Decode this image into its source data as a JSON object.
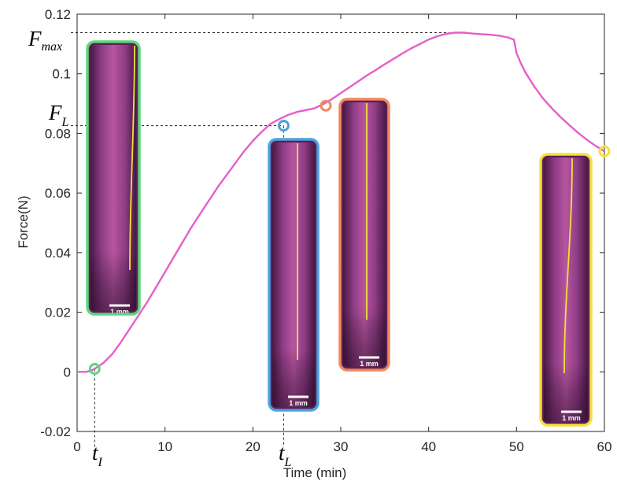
{
  "chart_data": {
    "type": "line",
    "title": "",
    "xlabel": "Time (min)",
    "ylabel": "Force(N)",
    "xlim": [
      0,
      60
    ],
    "ylim": [
      -0.02,
      0.12
    ],
    "xticks": [
      0,
      10,
      20,
      30,
      40,
      50,
      60
    ],
    "yticks": [
      -0.02,
      0,
      0.02,
      0.04,
      0.06,
      0.08,
      0.1,
      0.12
    ],
    "ytick_labels": [
      "-0.02",
      "0",
      "0.02",
      "0.04",
      "0.06",
      "0.08",
      "0.1",
      "0.12"
    ],
    "xtick_labels": [
      "0",
      "10",
      "20",
      "30",
      "40",
      "50",
      "60"
    ],
    "grid": false,
    "series": [
      {
        "color": "#e55fc8",
        "x": [
          0,
          1,
          1.5,
          2,
          3,
          4,
          5,
          6,
          7,
          8,
          9,
          10,
          11,
          12,
          13,
          14,
          15,
          16,
          17,
          18,
          19,
          20,
          21,
          22,
          23,
          24,
          25,
          26,
          27,
          28,
          29,
          30,
          31,
          32,
          33,
          34,
          35,
          36,
          37,
          38,
          39,
          40,
          41,
          42,
          43,
          44,
          45,
          46,
          47,
          48,
          49,
          49.7,
          50,
          50.5,
          51,
          52,
          53,
          54,
          55,
          56,
          57,
          58,
          59,
          60
        ],
        "y": [
          0,
          0,
          0.0003,
          0.001,
          0.003,
          0.006,
          0.01,
          0.0145,
          0.019,
          0.0235,
          0.0285,
          0.0335,
          0.0385,
          0.0435,
          0.0485,
          0.053,
          0.0575,
          0.062,
          0.066,
          0.07,
          0.074,
          0.0775,
          0.0805,
          0.0832,
          0.0848,
          0.0862,
          0.0872,
          0.0878,
          0.0884,
          0.0898,
          0.0915,
          0.0935,
          0.0955,
          0.0975,
          0.0995,
          0.1013,
          0.1032,
          0.105,
          0.1068,
          0.1085,
          0.11,
          0.1115,
          0.1126,
          0.1134,
          0.1138,
          0.1138,
          0.1135,
          0.1133,
          0.1131,
          0.1128,
          0.1122,
          0.1115,
          0.107,
          0.1035,
          0.1005,
          0.0958,
          0.0918,
          0.0885,
          0.0855,
          0.0828,
          0.0802,
          0.0779,
          0.0758,
          0.074
        ]
      }
    ],
    "markers": [
      {
        "label": "t_I",
        "x": 2,
        "y": 0.001,
        "color": "#5ed67d"
      },
      {
        "label": "t_L",
        "x": 23.5,
        "y": 0.0826,
        "color": "#4ba3e0"
      },
      {
        "label": "",
        "x": 28.3,
        "y": 0.0893,
        "color": "#ef8a5c"
      },
      {
        "label": "",
        "x": 60,
        "y": 0.074,
        "color": "#f3e138"
      }
    ],
    "reference_lines": [
      {
        "label": "F_max",
        "y": 0.1138
      },
      {
        "label": "F_L",
        "y": 0.0826
      }
    ],
    "insets": [
      {
        "border_color": "#5ed67d",
        "scale_label": "1 mm"
      },
      {
        "border_color": "#4ba3e0",
        "scale_label": "1 mm"
      },
      {
        "border_color": "#ef8a5c",
        "scale_label": "1 mm"
      },
      {
        "border_color": "#f3e138",
        "scale_label": "1 mm"
      }
    ],
    "annotations": [
      {
        "main": "F",
        "sub": "max"
      },
      {
        "main": "F",
        "sub": "L"
      },
      {
        "main": "t",
        "sub": "I"
      },
      {
        "main": "t",
        "sub": "L"
      }
    ]
  }
}
